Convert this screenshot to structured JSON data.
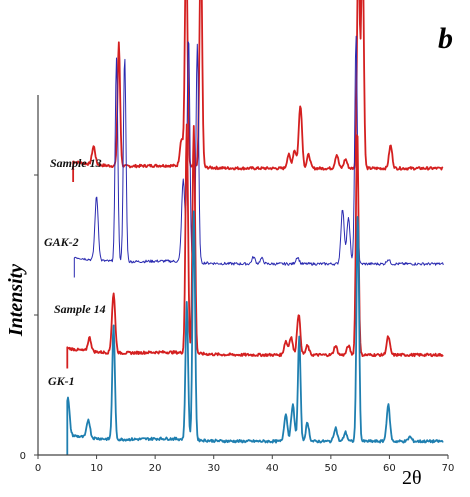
{
  "chart_data": {
    "type": "line",
    "panel_label": "b",
    "xlabel": "2θ",
    "ylabel": "Intensity",
    "xlim": [
      0,
      70
    ],
    "xticks": [
      0,
      10,
      20,
      30,
      40,
      50,
      60,
      70
    ],
    "yticks": [
      "0"
    ],
    "ylim": [
      0,
      100
    ],
    "grid": false,
    "legend": "none",
    "series": [
      {
        "name": "Sample 13",
        "color": "#d42020",
        "x_start": 6,
        "baseline": 63,
        "peaks": [
          [
            9.5,
            4
          ],
          [
            13.8,
            27
          ],
          [
            24.5,
            6
          ],
          [
            25.3,
            50
          ],
          [
            27.8,
            50
          ],
          [
            42.8,
            3
          ],
          [
            43.8,
            4
          ],
          [
            44.8,
            14
          ],
          [
            46.2,
            3
          ],
          [
            51.0,
            3
          ],
          [
            52.5,
            2
          ],
          [
            54.7,
            50
          ],
          [
            55.4,
            50
          ],
          [
            60.2,
            5
          ]
        ]
      },
      {
        "name": "GAK-2",
        "color": "#2a2ab0",
        "x_start": 6.2,
        "baseline": 42,
        "peaks": [
          [
            10.0,
            14
          ],
          [
            13.4,
            45
          ],
          [
            14.8,
            45
          ],
          [
            24.8,
            18
          ],
          [
            25.7,
            50
          ],
          [
            27.2,
            48
          ],
          [
            36.8,
            1.5
          ],
          [
            38.2,
            1.2
          ],
          [
            44.3,
            1.5
          ],
          [
            52.0,
            12
          ],
          [
            53.0,
            10
          ],
          [
            54.3,
            50
          ],
          [
            59.8,
            1
          ]
        ]
      },
      {
        "name": "Sample 14",
        "color": "#d42020",
        "x_start": 5,
        "baseline": 22,
        "peaks": [
          [
            8.8,
            3
          ],
          [
            12.9,
            13
          ],
          [
            25.4,
            50
          ],
          [
            26.6,
            50
          ],
          [
            42.3,
            3
          ],
          [
            43.2,
            4
          ],
          [
            44.5,
            9
          ],
          [
            46.0,
            2
          ],
          [
            50.8,
            2
          ],
          [
            53.0,
            2
          ],
          [
            54.5,
            50
          ],
          [
            59.8,
            4
          ]
        ]
      },
      {
        "name": "GK-1",
        "color": "#1f7fb0",
        "x_start": 5,
        "baseline": 3,
        "peaks": [
          [
            5.1,
            8
          ],
          [
            8.6,
            4
          ],
          [
            12.9,
            25
          ],
          [
            25.4,
            30
          ],
          [
            26.6,
            50
          ],
          [
            42.3,
            6
          ],
          [
            43.5,
            8
          ],
          [
            44.6,
            23
          ],
          [
            46.0,
            4
          ],
          [
            50.8,
            3
          ],
          [
            52.5,
            2
          ],
          [
            54.6,
            50
          ],
          [
            59.8,
            8
          ],
          [
            63.5,
            1
          ]
        ]
      }
    ]
  }
}
